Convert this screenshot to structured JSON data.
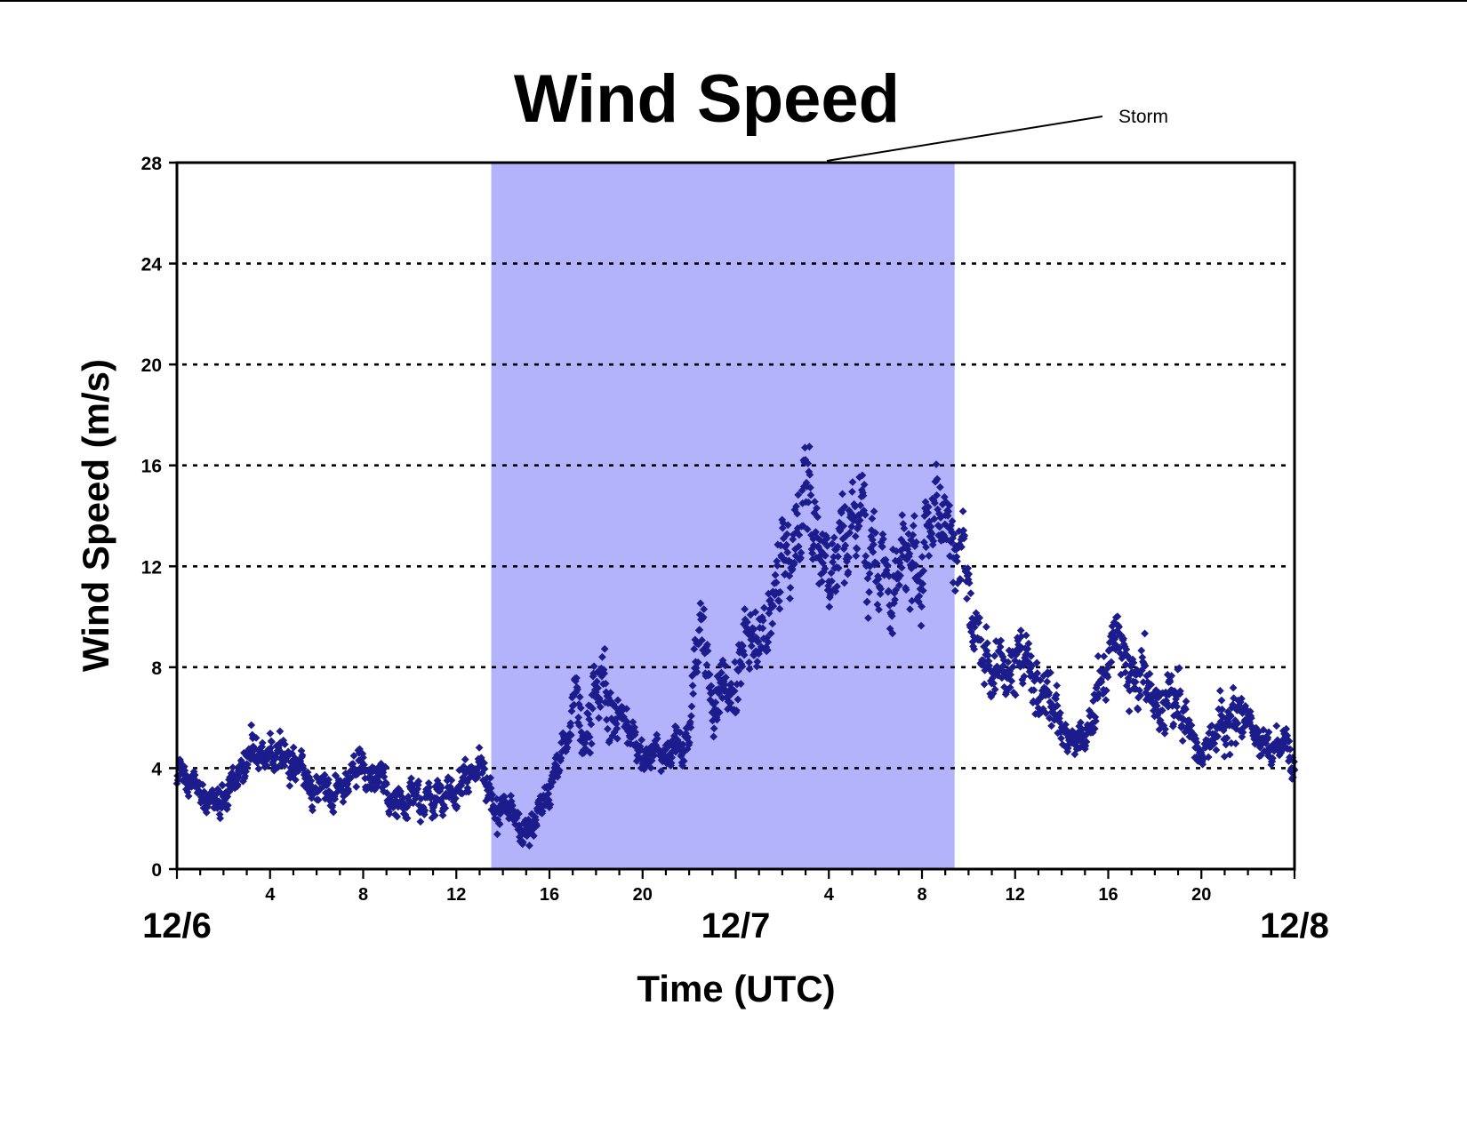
{
  "chart_data": {
    "type": "scatter",
    "title": "Wind Speed",
    "xlabel": "Time (UTC)",
    "ylabel": "Wind Speed (m/s)",
    "ylim": [
      0,
      28
    ],
    "xlim": [
      0,
      48
    ],
    "y_ticks": [
      "0",
      "4",
      "8",
      "12",
      "16",
      "20",
      "24",
      "28"
    ],
    "x_hour_ticks": [
      {
        "x": 4,
        "label": "4"
      },
      {
        "x": 8,
        "label": "8"
      },
      {
        "x": 12,
        "label": "12"
      },
      {
        "x": 16,
        "label": "16"
      },
      {
        "x": 20,
        "label": "20"
      },
      {
        "x": 28,
        "label": "4"
      },
      {
        "x": 32,
        "label": "8"
      },
      {
        "x": 36,
        "label": "12"
      },
      {
        "x": 40,
        "label": "16"
      },
      {
        "x": 44,
        "label": "20"
      }
    ],
    "x_day_ticks": [
      {
        "x": 0,
        "label": "12/6"
      },
      {
        "x": 24,
        "label": "12/7"
      },
      {
        "x": 48,
        "label": "12/8"
      }
    ],
    "gridlines": {
      "y": [
        4,
        8,
        12,
        16,
        20,
        24
      ],
      "style": "dotted"
    },
    "storm_period": {
      "start": 13.5,
      "end": 33.4,
      "label": "Storm",
      "color": "#b3b3fb"
    },
    "marker_color": "#1c1c8c",
    "marker_shape": "diamond",
    "series_profile": {
      "x": [
        0,
        1,
        2,
        3,
        4,
        5,
        6,
        7,
        8,
        9,
        10,
        11,
        12,
        13,
        13.5,
        14,
        15,
        16,
        17,
        18,
        19,
        20,
        21,
        22,
        22.5,
        23,
        24,
        25,
        26,
        27,
        28,
        29,
        30,
        31,
        32,
        33,
        33.4,
        34,
        35,
        36,
        37,
        38,
        39,
        40,
        41,
        42,
        43,
        44,
        45,
        46,
        47,
        48
      ],
      "y": [
        4.0,
        3.0,
        3.0,
        4.5,
        4.3,
        4.5,
        3.0,
        3.5,
        4.0,
        3.0,
        3.2,
        2.5,
        3.5,
        3.5,
        2.0,
        2.0,
        1.8,
        3.0,
        6.0,
        7.0,
        6.0,
        4.5,
        4.5,
        5.0,
        10.0,
        6.5,
        7.5,
        10.0,
        12.5,
        15.0,
        13.0,
        14.0,
        13.0,
        11.0,
        11.0,
        15.0,
        14.0,
        10.0,
        8.0,
        9.0,
        8.0,
        5.5,
        5.0,
        8.5,
        7.5,
        7.0,
        7.0,
        4.5,
        6.5,
        6.0,
        4.5,
        5.0
      ]
    }
  }
}
